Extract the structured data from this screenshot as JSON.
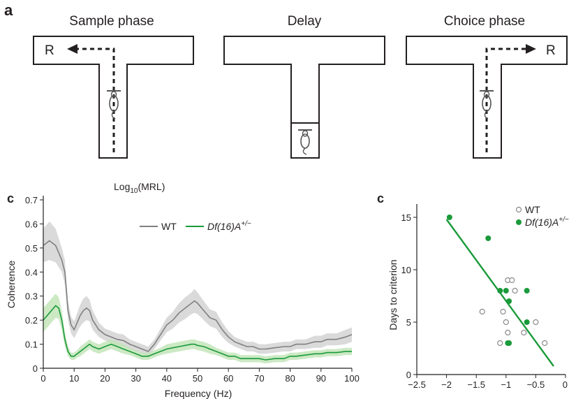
{
  "panel_a": {
    "label": "a",
    "phases": [
      {
        "title": "Sample phase",
        "reward": "R"
      },
      {
        "title": "Delay",
        "reward": ""
      },
      {
        "title": "Choice phase",
        "reward": "R"
      }
    ]
  },
  "chart_data": [
    {
      "type": "line",
      "panel_label": "c",
      "header": "Log10(MRL)",
      "header_main": "Log",
      "header_sub": "10",
      "header_rest": "(MRL)",
      "xlabel": "Frequency (Hz)",
      "ylabel": "Coherence",
      "xlim": [
        0,
        100
      ],
      "ylim": [
        0,
        0.7
      ],
      "xticks": [
        "0",
        "10",
        "20",
        "30",
        "40",
        "50",
        "60",
        "70",
        "80",
        "90",
        "100"
      ],
      "yticks": [
        "0",
        "0.1",
        "0.2",
        "0.3",
        "0.4",
        "0.5",
        "0.6",
        "0.7"
      ],
      "legend_position": "top-center",
      "series": [
        {
          "name": "WT",
          "color": "#808080",
          "band_color": "#d3d3d3",
          "x": [
            0,
            2,
            4,
            5,
            6,
            7,
            8,
            9,
            10,
            11,
            12,
            13,
            14,
            15,
            16,
            18,
            20,
            22,
            24,
            26,
            28,
            30,
            32,
            34,
            36,
            38,
            40,
            42,
            44,
            46,
            48,
            49,
            50,
            52,
            54,
            56,
            58,
            60,
            62,
            64,
            66,
            68,
            70,
            72,
            75,
            78,
            80,
            82,
            85,
            88,
            90,
            92,
            95,
            98,
            100
          ],
          "y": [
            0.51,
            0.53,
            0.51,
            0.48,
            0.45,
            0.4,
            0.24,
            0.18,
            0.16,
            0.19,
            0.22,
            0.24,
            0.25,
            0.24,
            0.2,
            0.16,
            0.14,
            0.13,
            0.12,
            0.115,
            0.1,
            0.09,
            0.08,
            0.07,
            0.1,
            0.14,
            0.18,
            0.2,
            0.23,
            0.25,
            0.27,
            0.28,
            0.27,
            0.24,
            0.21,
            0.2,
            0.16,
            0.13,
            0.11,
            0.1,
            0.09,
            0.09,
            0.08,
            0.08,
            0.085,
            0.09,
            0.09,
            0.1,
            0.1,
            0.11,
            0.11,
            0.12,
            0.12,
            0.13,
            0.14
          ],
          "error": [
            0.07,
            0.08,
            0.07,
            0.06,
            0.05,
            0.05,
            0.04,
            0.035,
            0.035,
            0.04,
            0.045,
            0.05,
            0.05,
            0.045,
            0.04,
            0.03,
            0.025,
            0.025,
            0.025,
            0.025,
            0.02,
            0.02,
            0.02,
            0.02,
            0.02,
            0.025,
            0.03,
            0.035,
            0.04,
            0.045,
            0.045,
            0.05,
            0.045,
            0.04,
            0.035,
            0.035,
            0.03,
            0.025,
            0.02,
            0.02,
            0.02,
            0.02,
            0.02,
            0.02,
            0.02,
            0.02,
            0.02,
            0.02,
            0.02,
            0.025,
            0.025,
            0.025,
            0.025,
            0.03,
            0.03
          ]
        },
        {
          "name": "Df(16)A+/−",
          "name_main": "Df(16)A",
          "name_sup": "+/−",
          "color": "#1a9a3a",
          "band_color": "#bfe3b5",
          "x": [
            0,
            2,
            4,
            5,
            6,
            7,
            8,
            9,
            10,
            11,
            12,
            13,
            14,
            15,
            16,
            18,
            20,
            22,
            24,
            26,
            28,
            30,
            32,
            34,
            36,
            38,
            40,
            42,
            44,
            46,
            48,
            49,
            50,
            52,
            54,
            56,
            58,
            60,
            62,
            64,
            66,
            68,
            70,
            72,
            75,
            78,
            80,
            82,
            85,
            88,
            90,
            92,
            95,
            98,
            100
          ],
          "y": [
            0.2,
            0.23,
            0.26,
            0.25,
            0.2,
            0.12,
            0.07,
            0.05,
            0.05,
            0.06,
            0.07,
            0.08,
            0.09,
            0.1,
            0.09,
            0.08,
            0.09,
            0.1,
            0.09,
            0.08,
            0.07,
            0.06,
            0.05,
            0.05,
            0.06,
            0.07,
            0.08,
            0.085,
            0.09,
            0.095,
            0.1,
            0.1,
            0.095,
            0.09,
            0.08,
            0.07,
            0.06,
            0.05,
            0.05,
            0.04,
            0.04,
            0.04,
            0.04,
            0.035,
            0.04,
            0.04,
            0.05,
            0.05,
            0.055,
            0.06,
            0.06,
            0.065,
            0.065,
            0.07,
            0.07
          ],
          "error": [
            0.05,
            0.05,
            0.05,
            0.045,
            0.04,
            0.03,
            0.02,
            0.015,
            0.015,
            0.015,
            0.02,
            0.02,
            0.02,
            0.02,
            0.02,
            0.02,
            0.02,
            0.02,
            0.02,
            0.02,
            0.015,
            0.015,
            0.015,
            0.015,
            0.015,
            0.015,
            0.02,
            0.02,
            0.02,
            0.02,
            0.02,
            0.02,
            0.02,
            0.02,
            0.02,
            0.015,
            0.015,
            0.015,
            0.015,
            0.015,
            0.015,
            0.015,
            0.015,
            0.015,
            0.015,
            0.015,
            0.015,
            0.015,
            0.015,
            0.015,
            0.015,
            0.015,
            0.015,
            0.015,
            0.015
          ]
        }
      ]
    },
    {
      "type": "scatter",
      "panel_label": "c",
      "xlabel": "",
      "ylabel": "Days to criterion",
      "xlim": [
        -2.5,
        0
      ],
      "ylim": [
        0,
        16
      ],
      "xticks": [
        "−2.5",
        "−2",
        "−1.5",
        "−1",
        "−0.5",
        "0"
      ],
      "yticks": [
        "0",
        "5",
        "10",
        "15"
      ],
      "legend_position": "top-right",
      "series": [
        {
          "name": "WT",
          "marker": "open",
          "color": "#8a8a8a",
          "points": [
            [
              -1.4,
              6
            ],
            [
              -1.1,
              3
            ],
            [
              -1.05,
              6
            ],
            [
              -1.0,
              5
            ],
            [
              -0.97,
              4
            ],
            [
              -0.97,
              9
            ],
            [
              -0.9,
              9
            ],
            [
              -0.85,
              8
            ],
            [
              -0.7,
              4
            ],
            [
              -0.5,
              5
            ],
            [
              -0.35,
              3
            ]
          ]
        },
        {
          "name": "Df(16)A+/−",
          "name_main": "Df(16)A",
          "name_sup": "+/−",
          "marker": "filled",
          "color": "#1a9a3a",
          "points": [
            [
              -1.95,
              15
            ],
            [
              -1.3,
              13
            ],
            [
              -1.1,
              8
            ],
            [
              -1.0,
              8
            ],
            [
              -0.95,
              7
            ],
            [
              -0.95,
              3
            ],
            [
              -0.97,
              3
            ],
            [
              -0.65,
              8
            ],
            [
              -0.65,
              5
            ]
          ]
        }
      ],
      "fit_line": {
        "color": "#1a9a3a",
        "x": [
          -2.0,
          -0.2
        ],
        "y": [
          14.8,
          0.8
        ]
      }
    }
  ]
}
